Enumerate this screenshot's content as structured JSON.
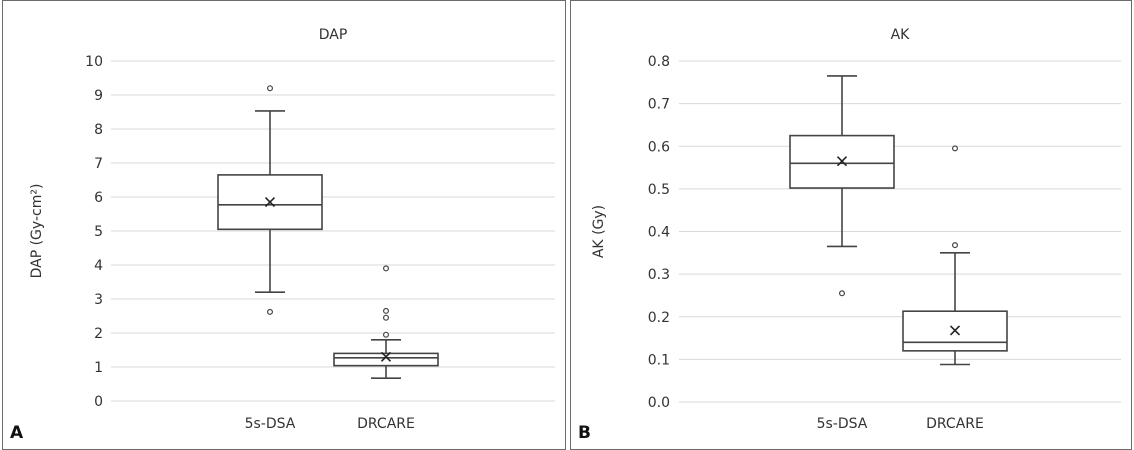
{
  "panels": [
    {
      "letter": "A"
    },
    {
      "letter": "B"
    }
  ],
  "chart_data": [
    {
      "type": "box",
      "title": "DAP",
      "xlabel": "",
      "ylabel": "DAP (Gy-cm²)",
      "ylim": [
        0,
        10
      ],
      "yticks": [
        "0",
        "1",
        "2",
        "3",
        "4",
        "5",
        "6",
        "7",
        "8",
        "9",
        "10"
      ],
      "grid": true,
      "categories": [
        "5s-DSA",
        "DRCARE"
      ],
      "boxes": [
        {
          "category": "5s-DSA",
          "whisker_low": 3.2,
          "q1": 5.05,
          "median": 5.77,
          "q3": 6.65,
          "whisker_high": 8.53,
          "mean": 5.85,
          "outliers": [
            2.62,
            9.2
          ]
        },
        {
          "category": "DRCARE",
          "whisker_low": 0.67,
          "q1": 1.04,
          "median": 1.27,
          "q3": 1.4,
          "whisker_high": 1.8,
          "mean": 1.3,
          "outliers": [
            1.95,
            2.45,
            2.65,
            3.9
          ]
        }
      ]
    },
    {
      "type": "box",
      "title": "AK",
      "xlabel": "",
      "ylabel": "AK (Gy)",
      "ylim": [
        0,
        0.8
      ],
      "yticks": [
        "0.0",
        "0.1",
        "0.2",
        "0.3",
        "0.4",
        "0.5",
        "0.6",
        "0.7",
        "0.8"
      ],
      "grid": true,
      "categories": [
        "5s-DSA",
        "DRCARE"
      ],
      "boxes": [
        {
          "category": "5s-DSA",
          "whisker_low": 0.365,
          "q1": 0.502,
          "median": 0.56,
          "q3": 0.625,
          "whisker_high": 0.765,
          "mean": 0.565,
          "outliers": [
            0.255
          ]
        },
        {
          "category": "DRCARE",
          "whisker_low": 0.088,
          "q1": 0.12,
          "median": 0.14,
          "q3": 0.213,
          "whisker_high": 0.35,
          "mean": 0.168,
          "outliers": [
            0.368,
            0.595
          ]
        }
      ]
    }
  ]
}
